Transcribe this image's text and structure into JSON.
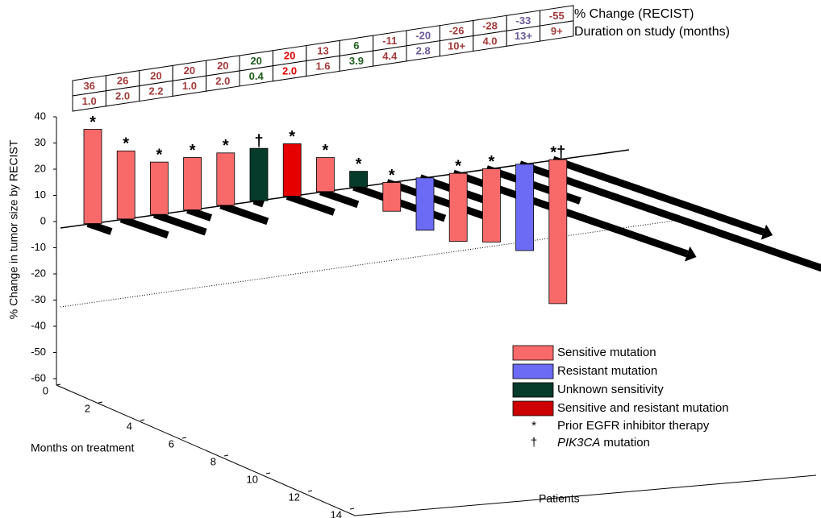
{
  "chart_data": {
    "type": "waterfall3d",
    "y_label": "% Change in tumor size by RECIST",
    "x_label": "Months on treatment",
    "z_label": "Patients",
    "table_labels": [
      "% Change (RECIST)",
      "Duration on study (months)"
    ],
    "values": [
      36,
      26,
      20,
      20,
      20,
      20,
      20,
      13,
      6,
      -11,
      -20,
      -26,
      -28,
      -33,
      -55
    ],
    "durations": [
      1.0,
      2.0,
      2.2,
      1.0,
      2.0,
      0.4,
      2.0,
      1.6,
      3.9,
      4.4,
      2.8,
      10,
      4.0,
      13,
      9
    ],
    "duration_labels": [
      "1.0",
      "2.0",
      "2.2",
      "1.0",
      "2.0",
      "0.4",
      "2.0",
      "1.6",
      "3.9",
      "4.4",
      "2.8",
      "10+",
      "4.0",
      "13+",
      "9+"
    ],
    "markers": [
      "*",
      "*",
      "*",
      "*",
      "*",
      "†",
      "*",
      "*",
      "*",
      "*",
      null,
      "*",
      "*",
      null,
      "*†"
    ],
    "colors": [
      "#f86a6a",
      "#f86a6a",
      "#f86a6a",
      "#f86a6a",
      "#f86a6a",
      "#063a2a",
      "#e60000",
      "#f86a6a",
      "#063a2a",
      "#f86a6a",
      "#6b6bf5",
      "#f86a6a",
      "#f86a6a",
      "#6b6bf5",
      "#f86a6a"
    ],
    "label_colors": [
      "#a33a3a",
      "#a33a3a",
      "#a33a3a",
      "#a33a3a",
      "#a33a3a",
      "#1e5e1e",
      "#e00000",
      "#a33a3a",
      "#1e5e1e",
      "#a33a3a",
      "#6a5a9a",
      "#a33a3a",
      "#a33a3a",
      "#6a5a9a",
      "#a33a3a"
    ],
    "ylim": [
      -60,
      40
    ],
    "yticks": [
      -60,
      -50,
      -40,
      -30,
      -20,
      -10,
      0,
      10,
      20,
      30,
      40
    ],
    "xlim": [
      0,
      14
    ],
    "xticks": [
      0,
      2,
      4,
      6,
      8,
      10,
      12,
      14
    ],
    "legend": [
      {
        "name": "Sensitive mutation",
        "color": "#f86a6a"
      },
      {
        "name": "Resistant mutation",
        "color": "#6b6bf5"
      },
      {
        "name": "Unknown sensitivity",
        "color": "#063a2a"
      },
      {
        "name": "Sensitive and resistant mutation",
        "color": "#cc0000"
      }
    ],
    "legend_symbols": [
      {
        "symbol": "*",
        "name": "Prior EGFR inhibitor therapy"
      },
      {
        "symbol": "†",
        "name_italic": "PIK3CA",
        "name": "mutation"
      }
    ]
  }
}
